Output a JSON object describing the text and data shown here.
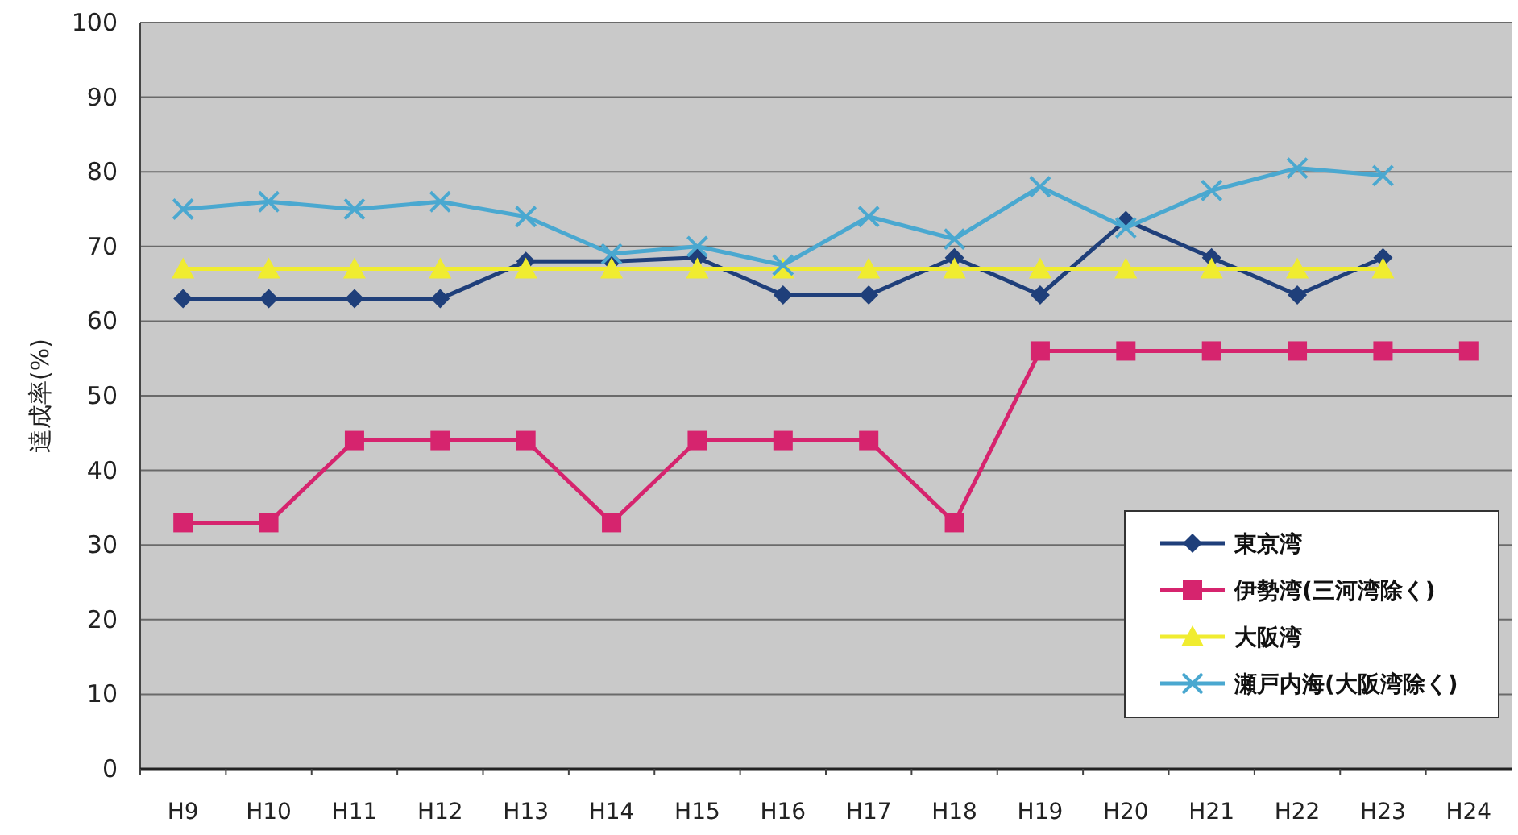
{
  "chart_data": {
    "type": "line",
    "ylabel": "達成率(%)",
    "categories": [
      "H9",
      "H10",
      "H11",
      "H12",
      "H13",
      "H14",
      "H15",
      "H16",
      "H17",
      "H18",
      "H19",
      "H20",
      "H21",
      "H22",
      "H23",
      "H24"
    ],
    "ylim": [
      0,
      100
    ],
    "yticks": [
      0,
      10,
      20,
      30,
      40,
      50,
      60,
      70,
      80,
      90,
      100
    ],
    "grid": "y",
    "legend": "bottom right",
    "series": [
      {
        "name": "東京湾",
        "color": "#1f3f7a",
        "marker": "diamond",
        "values": [
          63,
          63,
          63,
          63,
          68,
          68,
          68.5,
          63.5,
          63.5,
          68.5,
          63.5,
          73.5,
          68.5,
          63.5,
          68.5,
          null
        ]
      },
      {
        "name": "伊勢湾(三河湾除く)",
        "color": "#d6246e",
        "marker": "square",
        "values": [
          33,
          33,
          44,
          44,
          44,
          33,
          44,
          44,
          44,
          33,
          56,
          56,
          56,
          56,
          56,
          56
        ]
      },
      {
        "name": "大阪湾",
        "color": "#f0ec30",
        "marker": "triangle",
        "values": [
          67,
          67,
          67,
          67,
          67,
          67,
          67,
          67,
          67,
          67,
          67,
          67,
          67,
          67,
          67,
          null
        ]
      },
      {
        "name": "瀬戸内海(大阪湾除く)",
        "color": "#4aa8d0",
        "marker": "cross",
        "values": [
          75,
          76,
          75,
          76,
          74,
          69,
          70,
          67.5,
          74,
          71,
          78,
          72.5,
          77.5,
          80.5,
          79.5,
          null
        ]
      }
    ]
  }
}
